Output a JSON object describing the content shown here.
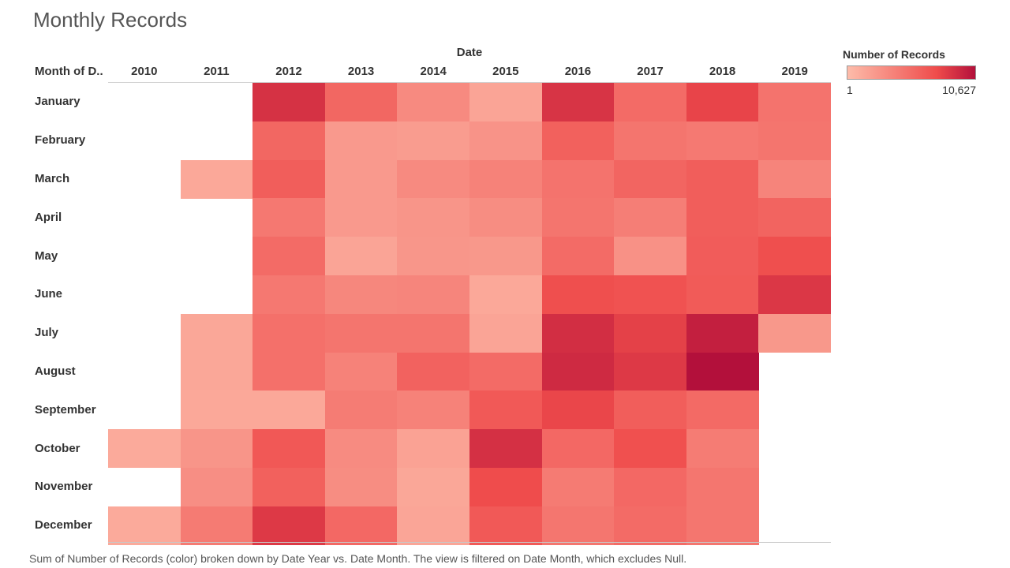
{
  "page": {
    "title": "Monthly Records",
    "caption": "Sum of Number of Records (color) broken down by Date Year vs. Date Month.  The view is filtered on Date Month, which excludes Null."
  },
  "chart_data": {
    "type": "heatmap",
    "title": "Monthly Records",
    "column_header": "Date",
    "row_header": "Month of D..",
    "x": [
      "2010",
      "2011",
      "2012",
      "2013",
      "2014",
      "2015",
      "2016",
      "2017",
      "2018",
      "2019"
    ],
    "y": [
      "January",
      "February",
      "March",
      "April",
      "May",
      "June",
      "July",
      "August",
      "September",
      "October",
      "November",
      "December"
    ],
    "values": [
      [
        null,
        null,
        8800,
        5600,
        3300,
        1600,
        8700,
        5300,
        7800,
        4800
      ],
      [
        null,
        null,
        5600,
        2300,
        2100,
        2700,
        6000,
        4700,
        4400,
        4700
      ],
      [
        null,
        1300,
        6200,
        2300,
        3300,
        3800,
        4800,
        5700,
        6200,
        3700
      ],
      [
        null,
        null,
        4500,
        2300,
        2600,
        3100,
        4700,
        4100,
        6200,
        5800
      ],
      [
        null,
        null,
        5300,
        1600,
        2500,
        2400,
        5300,
        2800,
        6300,
        7200
      ],
      [
        null,
        null,
        4500,
        3500,
        3600,
        1300,
        7200,
        7000,
        6400,
        8500
      ],
      [
        null,
        1400,
        5000,
        4700,
        4700,
        1600,
        9000,
        8000,
        9800,
        2400
      ],
      [
        null,
        1400,
        5000,
        3800,
        5900,
        5300,
        9200,
        8400,
        10627,
        null
      ],
      [
        null,
        1300,
        1300,
        4200,
        3800,
        6500,
        7700,
        6200,
        5400,
        null
      ],
      [
        1200,
        2600,
        6600,
        3200,
        1700,
        8900,
        5500,
        7100,
        4200,
        null
      ],
      [
        null,
        3000,
        6000,
        3100,
        1400,
        7400,
        4300,
        5500,
        4600,
        null
      ],
      [
        1200,
        4300,
        8400,
        5500,
        1500,
        6500,
        4600,
        5300,
        4600,
        null
      ]
    ],
    "color_scale": {
      "label": "Number of Records",
      "min": 1,
      "max": 10627,
      "min_label": "1",
      "max_label": "10,627",
      "min_color": "#fdbcaa",
      "mid_color": "#ef4b4b",
      "max_color": "#b3103b"
    },
    "grid": false,
    "legend": "top-right"
  }
}
